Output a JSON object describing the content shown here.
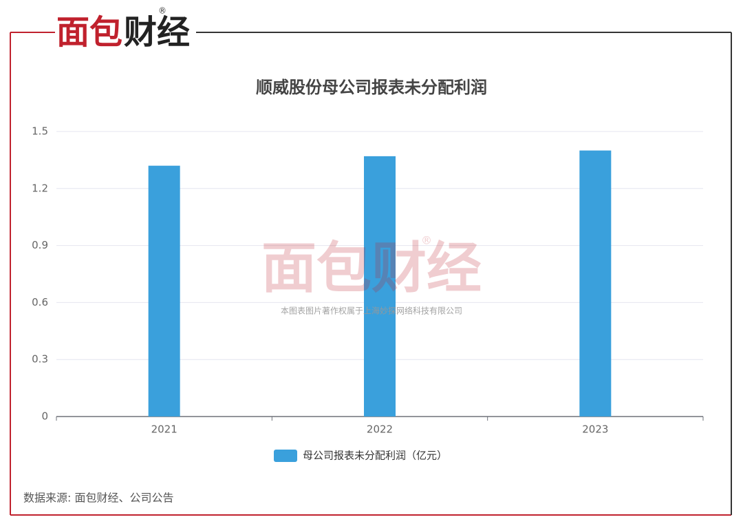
{
  "logo": [
    "面包",
    "财经"
  ],
  "logo_mark": "®",
  "watermark": {
    "logo": "面包财经",
    "mark": "®",
    "text": "本图表图片著作权属于上海妙探网络科技有限公司"
  },
  "source": "数据来源: 面包财经、公司公告",
  "chart_data": {
    "type": "bar",
    "title": "顺威股份母公司报表未分配利润",
    "categories": [
      "2021",
      "2022",
      "2023"
    ],
    "series": [
      {
        "name": "母公司报表未分配利润（亿元）",
        "color": "#3aa0dc",
        "values": [
          1.32,
          1.37,
          1.4
        ]
      }
    ],
    "ylim": [
      0,
      1.5
    ],
    "yticks": [
      0,
      0.3,
      0.6,
      0.9,
      1.2,
      1.5
    ],
    "grid": true,
    "legend": "bottom"
  }
}
